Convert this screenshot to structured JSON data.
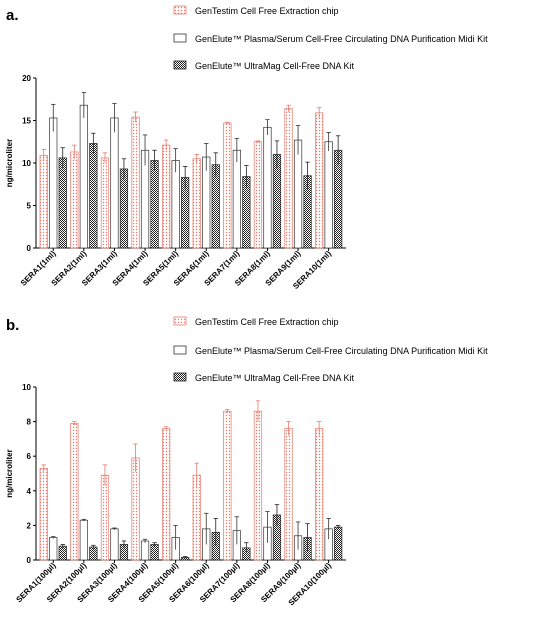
{
  "colors": {
    "series1": "#e8796a",
    "series2": "#333333",
    "series3": "#222222",
    "axis": "#000000"
  },
  "legend_labels": [
    "GenTestim Cell Free Extraction chip",
    "GenElute™ Plasma/Serum Cell-Free Circulating DNA Purification Midi Kit",
    "GenElute™ UltraMag Cell-Free DNA Kit"
  ],
  "chart_data": [
    {
      "panel_label": "a.",
      "type": "bar",
      "ylabel": "ng/microliter",
      "ylim": [
        0,
        20
      ],
      "yticks": [
        0,
        5,
        10,
        15,
        20
      ],
      "categories": [
        "SERA1(1ml)",
        "SERA2(1ml)",
        "SERA3(1ml)",
        "SERA4(1ml)",
        "SERA5(1ml)",
        "SERA6(1ml)",
        "SERA7(1ml)",
        "SERA8(1ml)",
        "SERA9(1ml)",
        "SERA10(1ml)"
      ],
      "legend_position": "top",
      "series": [
        {
          "name": "GenTestim Cell Free Extraction chip",
          "values": [
            10.9,
            11.3,
            10.6,
            15.4,
            12.1,
            10.5,
            14.7,
            12.5,
            16.4,
            15.9
          ],
          "errors": [
            0.7,
            0.8,
            0.6,
            0.6,
            0.6,
            0.5,
            0.1,
            0.1,
            0.4,
            0.6
          ]
        },
        {
          "name": "GenElute™ Plasma/Serum Cell-Free Circulating DNA Purification Midi Kit",
          "values": [
            15.3,
            16.8,
            15.3,
            11.5,
            10.3,
            10.7,
            11.5,
            14.2,
            12.7,
            12.5
          ],
          "errors": [
            1.6,
            1.5,
            1.7,
            1.8,
            1.4,
            1.6,
            1.4,
            0.9,
            1.7,
            1.1
          ]
        },
        {
          "name": "GenElute™ UltraMag Cell-Free DNA Kit",
          "values": [
            10.6,
            12.3,
            9.3,
            10.3,
            8.3,
            9.8,
            8.4,
            11.0,
            8.5,
            11.5
          ],
          "errors": [
            1.2,
            1.2,
            1.2,
            1.2,
            1.3,
            1.4,
            1.3,
            1.6,
            1.6,
            1.7
          ]
        }
      ]
    },
    {
      "panel_label": "b.",
      "type": "bar",
      "ylabel": "ng/microliter",
      "ylim": [
        0,
        10
      ],
      "yticks": [
        0,
        2,
        4,
        6,
        8,
        10
      ],
      "categories": [
        "SERA1(100µl)",
        "SERA2(100µl)",
        "SERA3(100µl)",
        "SERA4(100µl)",
        "SERA5(100µl)",
        "SERA6(100µl)",
        "SERA7(100µl)",
        "SERA8(100µl)",
        "SERA9(100µl)",
        "SERA10(100µl)"
      ],
      "legend_position": "top",
      "series": [
        {
          "name": "GenTestim Cell Free Extraction chip",
          "values": [
            5.3,
            7.9,
            4.9,
            5.9,
            7.6,
            4.9,
            8.6,
            8.6,
            7.6,
            7.6
          ],
          "errors": [
            0.2,
            0.1,
            0.6,
            0.8,
            0.1,
            0.7,
            0.1,
            0.6,
            0.4,
            0.4
          ]
        },
        {
          "name": "GenElute™ Plasma/Serum Cell-Free Circulating DNA Purification Midi Kit",
          "values": [
            1.3,
            2.3,
            1.8,
            1.1,
            1.3,
            1.8,
            1.7,
            1.9,
            1.4,
            1.8
          ],
          "errors": [
            0.05,
            0.05,
            0.05,
            0.1,
            0.7,
            0.9,
            0.8,
            0.9,
            0.8,
            0.6
          ]
        },
        {
          "name": "GenElute™ UltraMag Cell-Free DNA Kit",
          "values": [
            0.8,
            0.75,
            0.9,
            0.9,
            0.15,
            1.6,
            0.7,
            2.6,
            1.3,
            1.9
          ],
          "errors": [
            0.1,
            0.1,
            0.2,
            0.1,
            0.05,
            0.8,
            0.3,
            0.6,
            0.8,
            0.1
          ]
        }
      ]
    }
  ]
}
